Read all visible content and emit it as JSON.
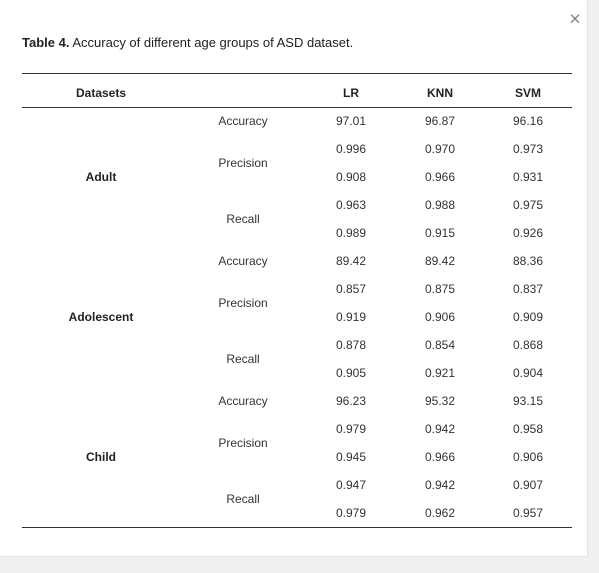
{
  "close": "×",
  "caption": {
    "label": "Table 4.",
    "text": "Accuracy of different age groups of ASD dataset."
  },
  "table": {
    "header": [
      "Datasets",
      "LR",
      "KNN",
      "SVM"
    ],
    "groups": [
      {
        "name": "Adult",
        "metrics": [
          {
            "name": "Accuracy",
            "rows": [
              [
                "97.01",
                "96.87",
                "96.16"
              ]
            ]
          },
          {
            "name": "Precision",
            "rows": [
              [
                "0.996",
                "0.970",
                "0.973"
              ],
              [
                "0.908",
                "0.966",
                "0.931"
              ]
            ]
          },
          {
            "name": "Recall",
            "rows": [
              [
                "0.963",
                "0.988",
                "0.975"
              ],
              [
                "0.989",
                "0.915",
                "0.926"
              ]
            ]
          }
        ]
      },
      {
        "name": "Adolescent",
        "metrics": [
          {
            "name": "Accuracy",
            "rows": [
              [
                "89.42",
                "89.42",
                "88.36"
              ]
            ]
          },
          {
            "name": "Precision",
            "rows": [
              [
                "0.857",
                "0.875",
                "0.837"
              ],
              [
                "0.919",
                "0.906",
                "0.909"
              ]
            ]
          },
          {
            "name": "Recall",
            "rows": [
              [
                "0.878",
                "0.854",
                "0.868"
              ],
              [
                "0.905",
                "0.921",
                "0.904"
              ]
            ]
          }
        ]
      },
      {
        "name": "Child",
        "metrics": [
          {
            "name": "Accuracy",
            "rows": [
              [
                "96.23",
                "95.32",
                "93.15"
              ]
            ]
          },
          {
            "name": "Precision",
            "rows": [
              [
                "0.979",
                "0.942",
                "0.958"
              ],
              [
                "0.945",
                "0.966",
                "0.906"
              ]
            ]
          },
          {
            "name": "Recall",
            "rows": [
              [
                "0.947",
                "0.942",
                "0.907"
              ],
              [
                "0.979",
                "0.962",
                "0.957"
              ]
            ]
          }
        ]
      }
    ]
  }
}
